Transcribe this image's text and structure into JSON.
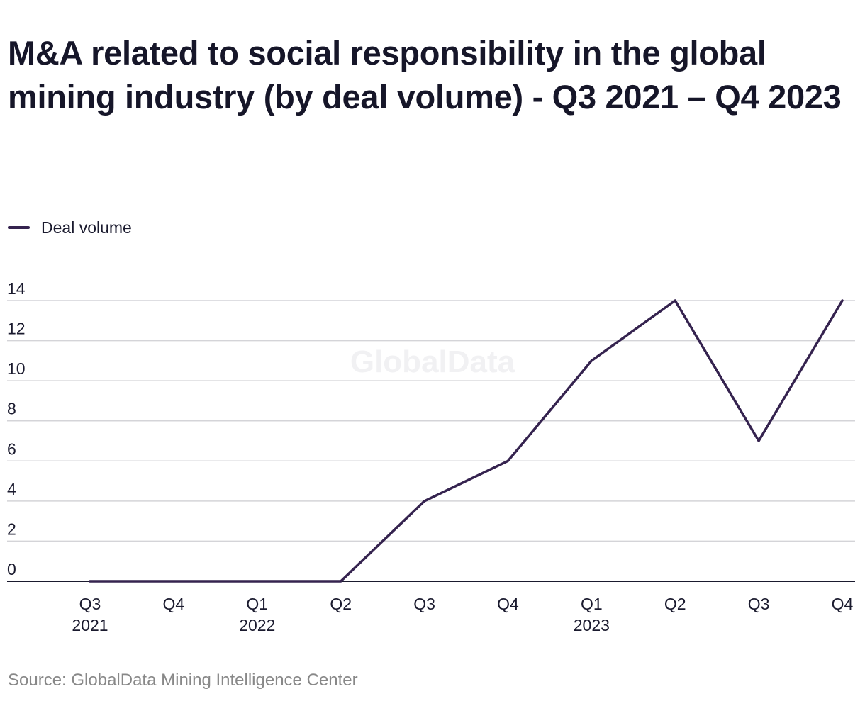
{
  "colors": {
    "series": "#35234f",
    "grid": "#d4d4d8",
    "axis": "#1a1a2e",
    "text": "#1a1a2e",
    "source": "#888888",
    "watermark": "#f1f1f3"
  },
  "watermark": "GlobalData",
  "source": "Source: GlobalData Mining Intelligence Center",
  "chart_data": {
    "type": "line",
    "title": "M&A related to social responsibility in the global mining industry (by deal volume) - Q3 2021 – Q4 2023",
    "xlabel": "",
    "ylabel": "",
    "ylim": [
      0,
      14
    ],
    "yticks": [
      0,
      2,
      4,
      6,
      8,
      10,
      12,
      14
    ],
    "grid": true,
    "legend_position": "top-left",
    "categories": [
      {
        "quarter": "Q3",
        "year": "2021"
      },
      {
        "quarter": "Q4",
        "year": ""
      },
      {
        "quarter": "Q1",
        "year": "2022"
      },
      {
        "quarter": "Q2",
        "year": ""
      },
      {
        "quarter": "Q3",
        "year": ""
      },
      {
        "quarter": "Q4",
        "year": ""
      },
      {
        "quarter": "Q1",
        "year": "2023"
      },
      {
        "quarter": "Q2",
        "year": ""
      },
      {
        "quarter": "Q3",
        "year": ""
      },
      {
        "quarter": "Q4",
        "year": ""
      }
    ],
    "series": [
      {
        "name": "Deal volume",
        "values": [
          0,
          0,
          0,
          0,
          4,
          6,
          11,
          14,
          7,
          14
        ]
      }
    ]
  }
}
